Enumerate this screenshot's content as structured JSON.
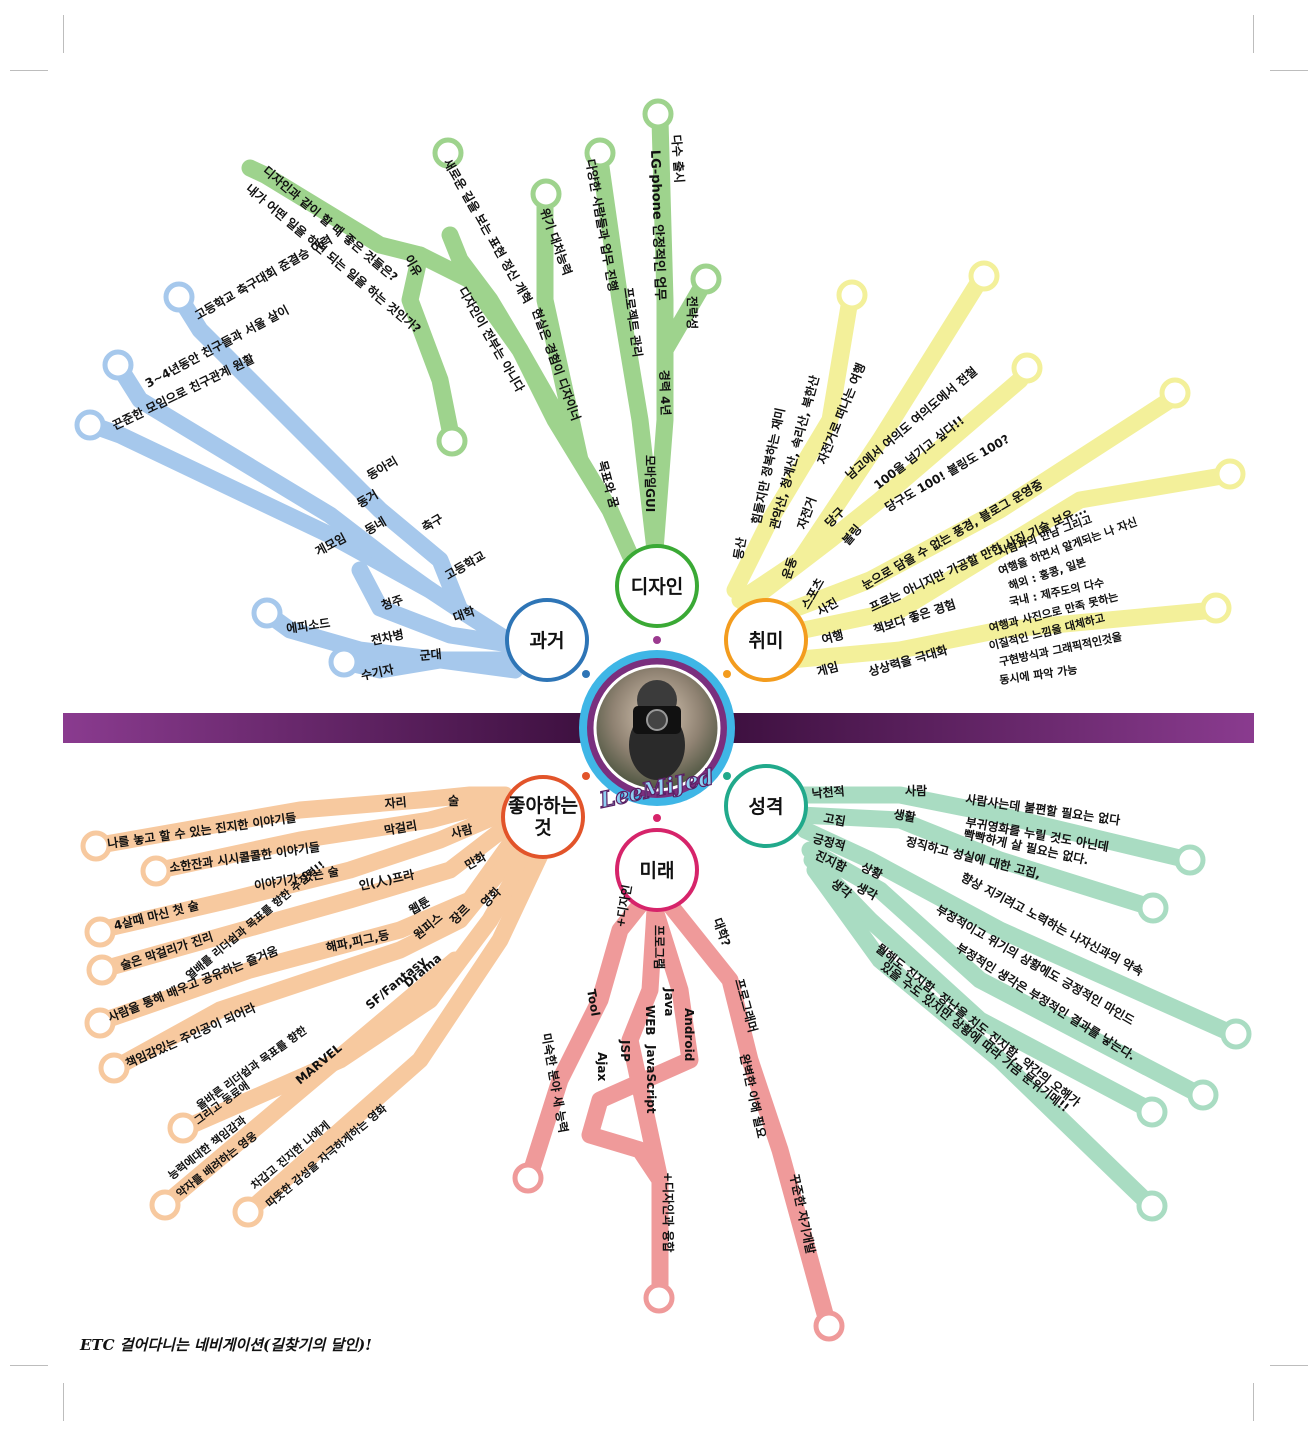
{
  "center": {
    "name": "LeeMiJed"
  },
  "colors": {
    "bar": "#7a2f7e",
    "past": "#a6c8ec",
    "design": "#9ed38d",
    "hobby": "#f3f09a",
    "like": "#f7c99f",
    "future": "#ef9a9a",
    "personality": "#a9dcc2"
  },
  "hubs": {
    "past": "과거",
    "design": "디자인",
    "hobby": "취미",
    "like": "좋아하는\n것",
    "future": "미래",
    "personality": "성격"
  },
  "branches": {
    "past": [
      "끈준한 모임으로 친구관계 원활",
      "3~4년동안 친구들과 서울 살이",
      "고등학교 축구대회 준결승 이력",
      "동아리",
      "동거",
      "동네",
      "게모임",
      "축구",
      "고등학교",
      "청주",
      "대학",
      "에피소드",
      "전차병",
      "군대",
      "수기자"
    ],
    "design": [
      "디자인과 같이 할 때 좋은 것들은?",
      "내가 어떤 일을 하면 되는 일을 하는 것인가?",
      "이유",
      "새로운 길을 보는 표현 정신 개혁",
      "디자인이 전부는 아니다",
      "위기 대처능력",
      "현실은 경험이 디자이너",
      "목표와 꿈",
      "다양한 사람들과 업무 진행",
      "프로젝트 관리",
      "다수 출시",
      "LG-phone 안정적인 업무",
      "전략성",
      "경력 4년",
      "모바일GUI"
    ],
    "hobby": [
      "등산",
      "힘들지만 정복하는 재미",
      "관악산, 청계산, 속리산, 북한산",
      "운동",
      "자전거",
      "자전거로 떠나는 여행",
      "남고에서 여의도 여의도에서 전철",
      "스포츠",
      "당구",
      "볼링",
      "100을 넘기고 싶다!!",
      "당구도 100! 볼링도 100?",
      "사진",
      "눈으로 담을 수 없는 풍경, 블로그 운영중",
      "프로는 아니지만 가공할 만한 사진 기술 보유...",
      "여행",
      "책보다 좋은 경험",
      "사람과의 만남 그리고",
      "여행을 하면서 알게되는 나 자신",
      "해외 : 홍콩, 일본",
      "국내 : 제주도의 다수",
      "게임",
      "상상력을 극대화",
      "여행과 사진으로 만족 못하는",
      "이질적인 느낌을 대체하고",
      "구현방식과 그래픽적인것을",
      "동시에 파악 가능"
    ],
    "like": [
      "나를 놓고 할 수 있는 진지한 이야기들",
      "소한잔과 시시콜콜한 이야기들",
      "4살때 마신 첫 술",
      "술은 막걸리가 진리",
      "사람을 통해 배우고 공유하는 즐거움",
      "책임감있는 주인공이 되어라",
      "자리",
      "술",
      "막걸리",
      "이야기가 있는 술",
      "사람",
      "인(人)프라",
      "만화",
      "웹툰",
      "해파,피그,등",
      "원피스",
      "장르",
      "영화",
      "SF/Fantasy",
      "Drama",
      "MARVEL",
      "열배를 리더쉽과 목표를 향한 추진력!!",
      "올바른 리더쉽과 목표를 향한",
      "그리고 동료애",
      "능력에대한 책임감과",
      "약자를 배려하는 영웅",
      "차갑고 진지한 나에게",
      "따뜻한 감성을 자극하게하는 영화"
    ],
    "future": [
      "+디자인",
      "Tool",
      "미숙한 분야 새 능력",
      "프로그램",
      "Java",
      "Android",
      "WEB",
      "JavaScript",
      "JSP",
      "Ajax",
      "+디자인과 융합",
      "대학?",
      "프로그래머",
      "완벽한 이해 필요",
      "꾸준한 자기개발"
    ],
    "personality": [
      "낙천적",
      "사람",
      "사람사는데 불편할 필요는 없다",
      "생활",
      "부귀영화를 누릴 것도 아닌데",
      "고집",
      "빡빡하게 살 필요는 없다.",
      "정직하고 성실에 대한 고집,",
      "긍정적",
      "상황",
      "향상 지키려고 노력하는 나자신과의 약속",
      "생각",
      "부정적이고 위기의 상황에도 긍정적인 마인드",
      "진지함",
      "생각",
      "부정적인 생각은 부정적인 결과를 낳는다.",
      "뭘해도 진지함, 장난을 치도 진지함, 약간의 오해가",
      "있을 수도 있지만 상황에 따라 가끔 분위기메!!"
    ]
  },
  "footer": "ETC 걸어다니는 네비게이션(길찾기의 달인)!"
}
